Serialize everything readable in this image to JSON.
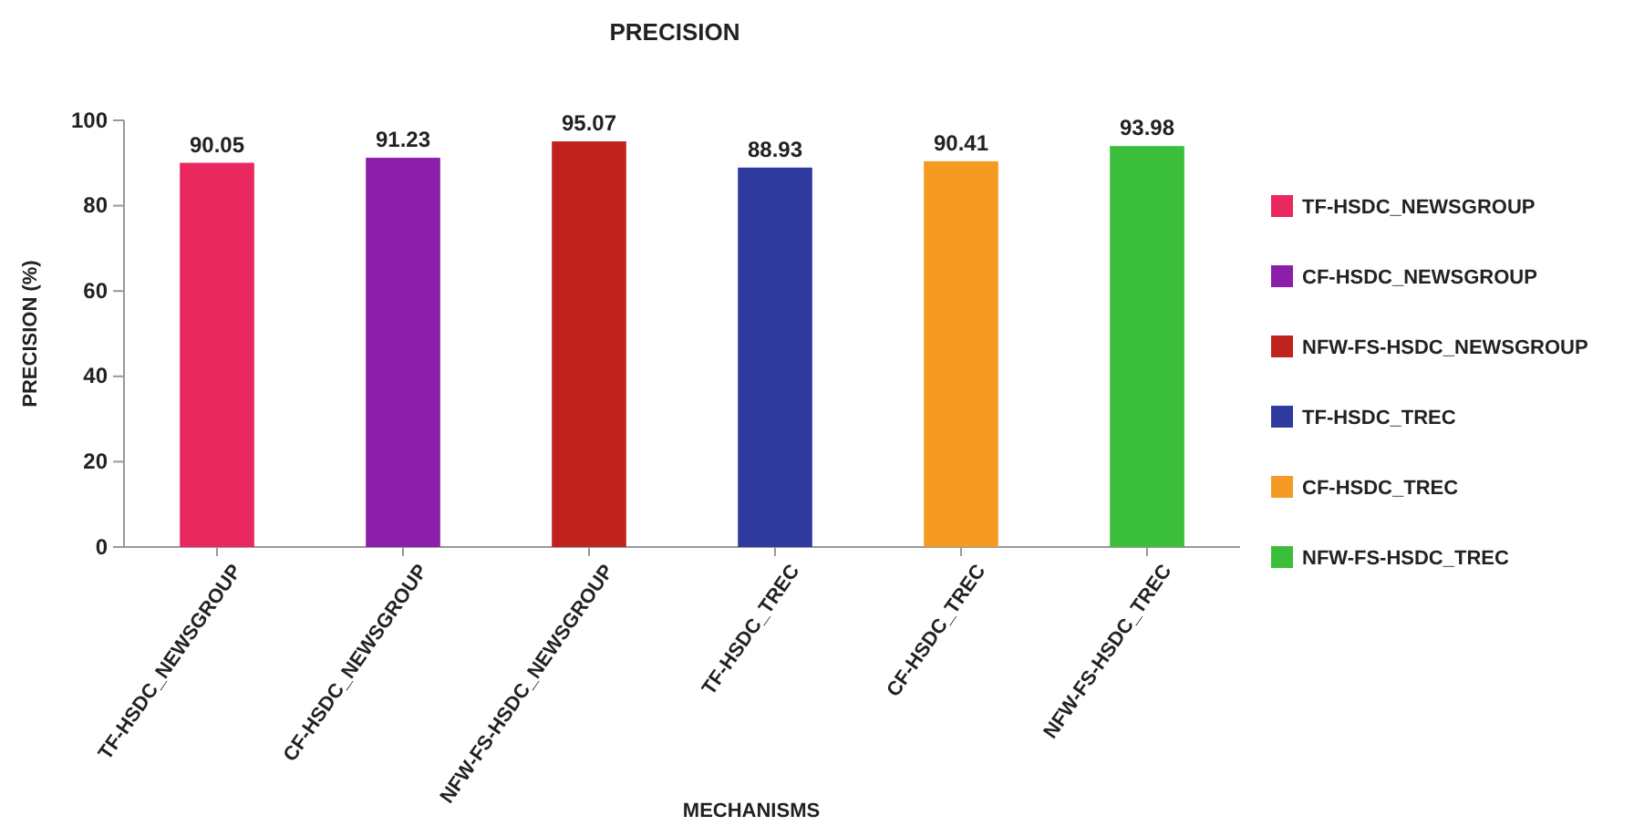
{
  "chart_data": {
    "type": "bar",
    "title": "PRECISION",
    "xlabel": "MECHANISMS",
    "ylabel": "PRECISION (%)",
    "categories": [
      "TF-HSDC_NEWSGROUP",
      "CF-HSDC_NEWSGROUP",
      "NFW-FS-HSDC_NEWSGROUP",
      "TF-HSDC_TREC",
      "CF-HSDC_TREC",
      "NFW-FS-HSDC_TREC"
    ],
    "series": [
      {
        "name": "TF-HSDC_NEWSGROUP",
        "color": "#e8285f",
        "values": [
          90.05,
          null,
          null,
          null,
          null,
          null
        ]
      },
      {
        "name": "CF-HSDC_NEWSGROUP",
        "color": "#8b1fa9",
        "values": [
          null,
          91.23,
          null,
          null,
          null,
          null
        ]
      },
      {
        "name": "NFW-FS-HSDC_NEWSGROUP",
        "color": "#c0231e",
        "values": [
          null,
          null,
          95.07,
          null,
          null,
          null
        ]
      },
      {
        "name": "TF-HSDC_TREC",
        "color": "#2e3a9e",
        "values": [
          null,
          null,
          null,
          88.93,
          null,
          null
        ]
      },
      {
        "name": "CF-HSDC_TREC",
        "color": "#f59a23",
        "values": [
          null,
          null,
          null,
          null,
          90.41,
          null
        ]
      },
      {
        "name": "NFW-FS-HSDC_TREC",
        "color": "#3bbf3a",
        "values": [
          null,
          null,
          null,
          null,
          null,
          93.98
        ]
      }
    ],
    "ylim": [
      0,
      100
    ],
    "yticks": [
      0,
      20,
      40,
      60,
      80,
      100
    ],
    "grid": false,
    "legend": "right",
    "data_labels": true
  }
}
